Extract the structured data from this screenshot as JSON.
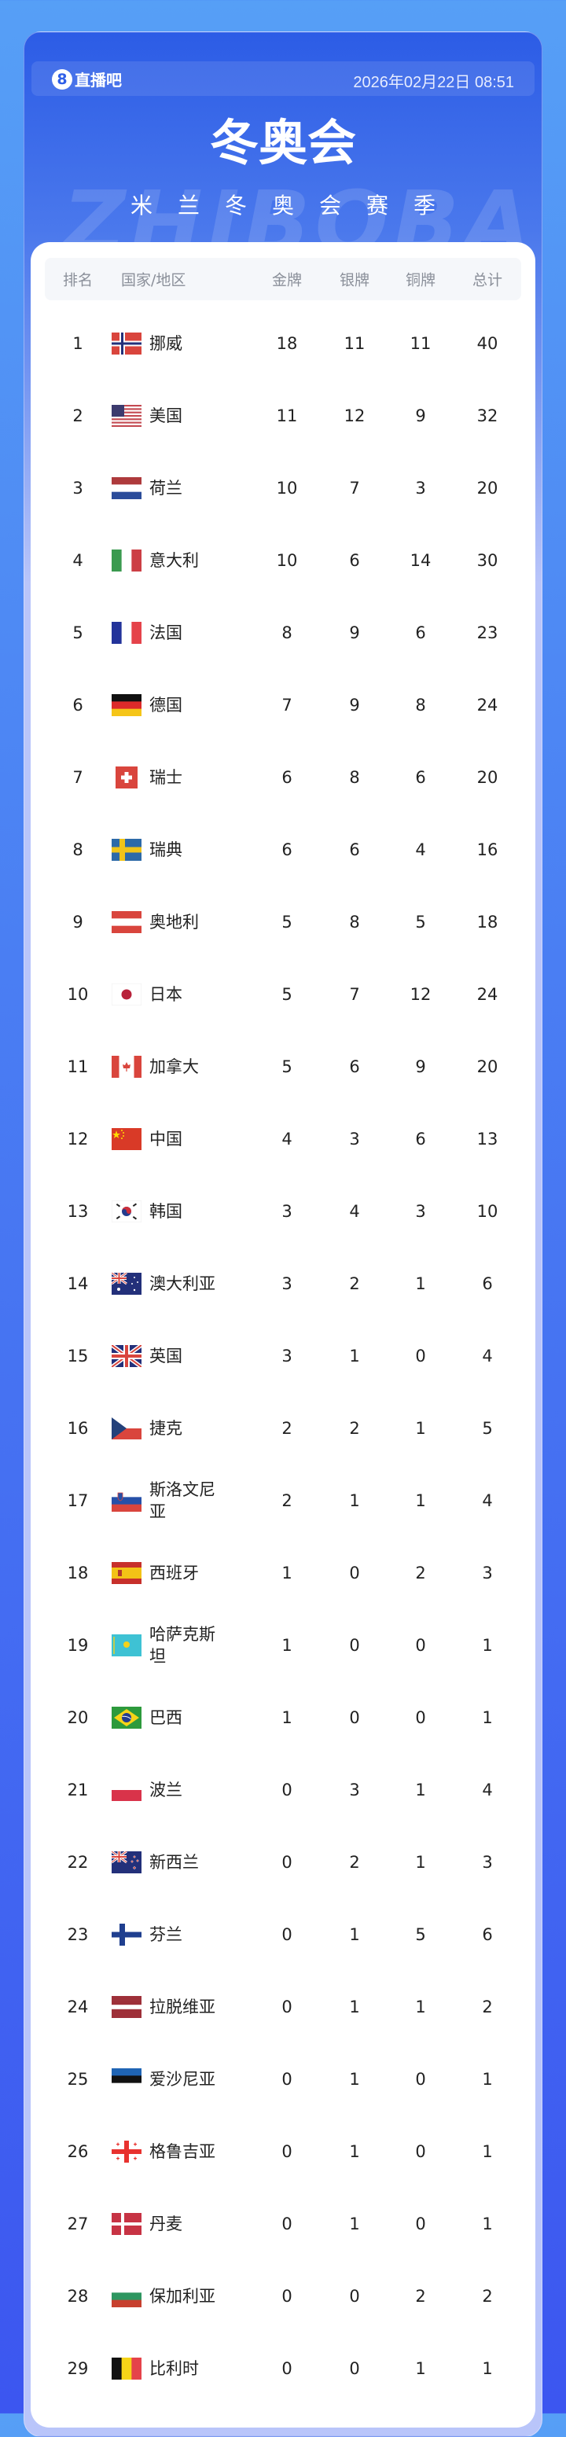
{
  "header": {
    "logo_text": "直播吧",
    "logo_mark": "8",
    "datetime": "2026年02月22日 08:51",
    "title": "冬奥会",
    "subtitle": "米兰冬奥会赛季",
    "watermark": "ZHIBOBA"
  },
  "colors": {
    "accent": "#2f5fe8",
    "header_bg": "#f5f7fa"
  },
  "table": {
    "columns": {
      "rank": "排名",
      "country": "国家/地区",
      "gold": "金牌",
      "silver": "银牌",
      "bronze": "铜牌",
      "total": "总计"
    },
    "rows": [
      {
        "rank": "1",
        "flag": "norway-flag",
        "name": "挪威",
        "gold": "18",
        "silver": "11",
        "bronze": "11",
        "total": "40"
      },
      {
        "rank": "2",
        "flag": "usa-flag",
        "name": "美国",
        "gold": "11",
        "silver": "12",
        "bronze": "9",
        "total": "32"
      },
      {
        "rank": "3",
        "flag": "netherlands-flag",
        "name": "荷兰",
        "gold": "10",
        "silver": "7",
        "bronze": "3",
        "total": "20"
      },
      {
        "rank": "4",
        "flag": "italy-flag",
        "name": "意大利",
        "gold": "10",
        "silver": "6",
        "bronze": "14",
        "total": "30"
      },
      {
        "rank": "5",
        "flag": "france-flag",
        "name": "法国",
        "gold": "8",
        "silver": "9",
        "bronze": "6",
        "total": "23"
      },
      {
        "rank": "6",
        "flag": "germany-flag",
        "name": "德国",
        "gold": "7",
        "silver": "9",
        "bronze": "8",
        "total": "24"
      },
      {
        "rank": "7",
        "flag": "switzerland-flag",
        "name": "瑞士",
        "gold": "6",
        "silver": "8",
        "bronze": "6",
        "total": "20"
      },
      {
        "rank": "8",
        "flag": "sweden-flag",
        "name": "瑞典",
        "gold": "6",
        "silver": "6",
        "bronze": "4",
        "total": "16"
      },
      {
        "rank": "9",
        "flag": "austria-flag",
        "name": "奥地利",
        "gold": "5",
        "silver": "8",
        "bronze": "5",
        "total": "18"
      },
      {
        "rank": "10",
        "flag": "japan-flag",
        "name": "日本",
        "gold": "5",
        "silver": "7",
        "bronze": "12",
        "total": "24"
      },
      {
        "rank": "11",
        "flag": "canada-flag",
        "name": "加拿大",
        "gold": "5",
        "silver": "6",
        "bronze": "9",
        "total": "20"
      },
      {
        "rank": "12",
        "flag": "china-flag",
        "name": "中国",
        "gold": "4",
        "silver": "3",
        "bronze": "6",
        "total": "13"
      },
      {
        "rank": "13",
        "flag": "korea-flag",
        "name": "韩国",
        "gold": "3",
        "silver": "4",
        "bronze": "3",
        "total": "10"
      },
      {
        "rank": "14",
        "flag": "australia-flag",
        "name": "澳大利亚",
        "gold": "3",
        "silver": "2",
        "bronze": "1",
        "total": "6"
      },
      {
        "rank": "15",
        "flag": "uk-flag",
        "name": "英国",
        "gold": "3",
        "silver": "1",
        "bronze": "0",
        "total": "4"
      },
      {
        "rank": "16",
        "flag": "czech-flag",
        "name": "捷克",
        "gold": "2",
        "silver": "2",
        "bronze": "1",
        "total": "5"
      },
      {
        "rank": "17",
        "flag": "slovenia-flag",
        "name": "斯洛文尼亚",
        "gold": "2",
        "silver": "1",
        "bronze": "1",
        "total": "4"
      },
      {
        "rank": "18",
        "flag": "spain-flag",
        "name": "西班牙",
        "gold": "1",
        "silver": "0",
        "bronze": "2",
        "total": "3"
      },
      {
        "rank": "19",
        "flag": "kazakhstan-flag",
        "name": "哈萨克斯坦",
        "gold": "1",
        "silver": "0",
        "bronze": "0",
        "total": "1"
      },
      {
        "rank": "20",
        "flag": "brazil-flag",
        "name": "巴西",
        "gold": "1",
        "silver": "0",
        "bronze": "0",
        "total": "1"
      },
      {
        "rank": "21",
        "flag": "poland-flag",
        "name": "波兰",
        "gold": "0",
        "silver": "3",
        "bronze": "1",
        "total": "4"
      },
      {
        "rank": "22",
        "flag": "newzealand-flag",
        "name": "新西兰",
        "gold": "0",
        "silver": "2",
        "bronze": "1",
        "total": "3"
      },
      {
        "rank": "23",
        "flag": "finland-flag",
        "name": "芬兰",
        "gold": "0",
        "silver": "1",
        "bronze": "5",
        "total": "6"
      },
      {
        "rank": "24",
        "flag": "latvia-flag",
        "name": "拉脱维亚",
        "gold": "0",
        "silver": "1",
        "bronze": "1",
        "total": "2"
      },
      {
        "rank": "25",
        "flag": "estonia-flag",
        "name": "爱沙尼亚",
        "gold": "0",
        "silver": "1",
        "bronze": "0",
        "total": "1"
      },
      {
        "rank": "26",
        "flag": "georgia-flag",
        "name": "格鲁吉亚",
        "gold": "0",
        "silver": "1",
        "bronze": "0",
        "total": "1"
      },
      {
        "rank": "27",
        "flag": "denmark-flag",
        "name": "丹麦",
        "gold": "0",
        "silver": "1",
        "bronze": "0",
        "total": "1"
      },
      {
        "rank": "28",
        "flag": "bulgaria-flag",
        "name": "保加利亚",
        "gold": "0",
        "silver": "0",
        "bronze": "2",
        "total": "2"
      },
      {
        "rank": "29",
        "flag": "belgium-flag",
        "name": "比利时",
        "gold": "0",
        "silver": "0",
        "bronze": "1",
        "total": "1"
      }
    ]
  }
}
